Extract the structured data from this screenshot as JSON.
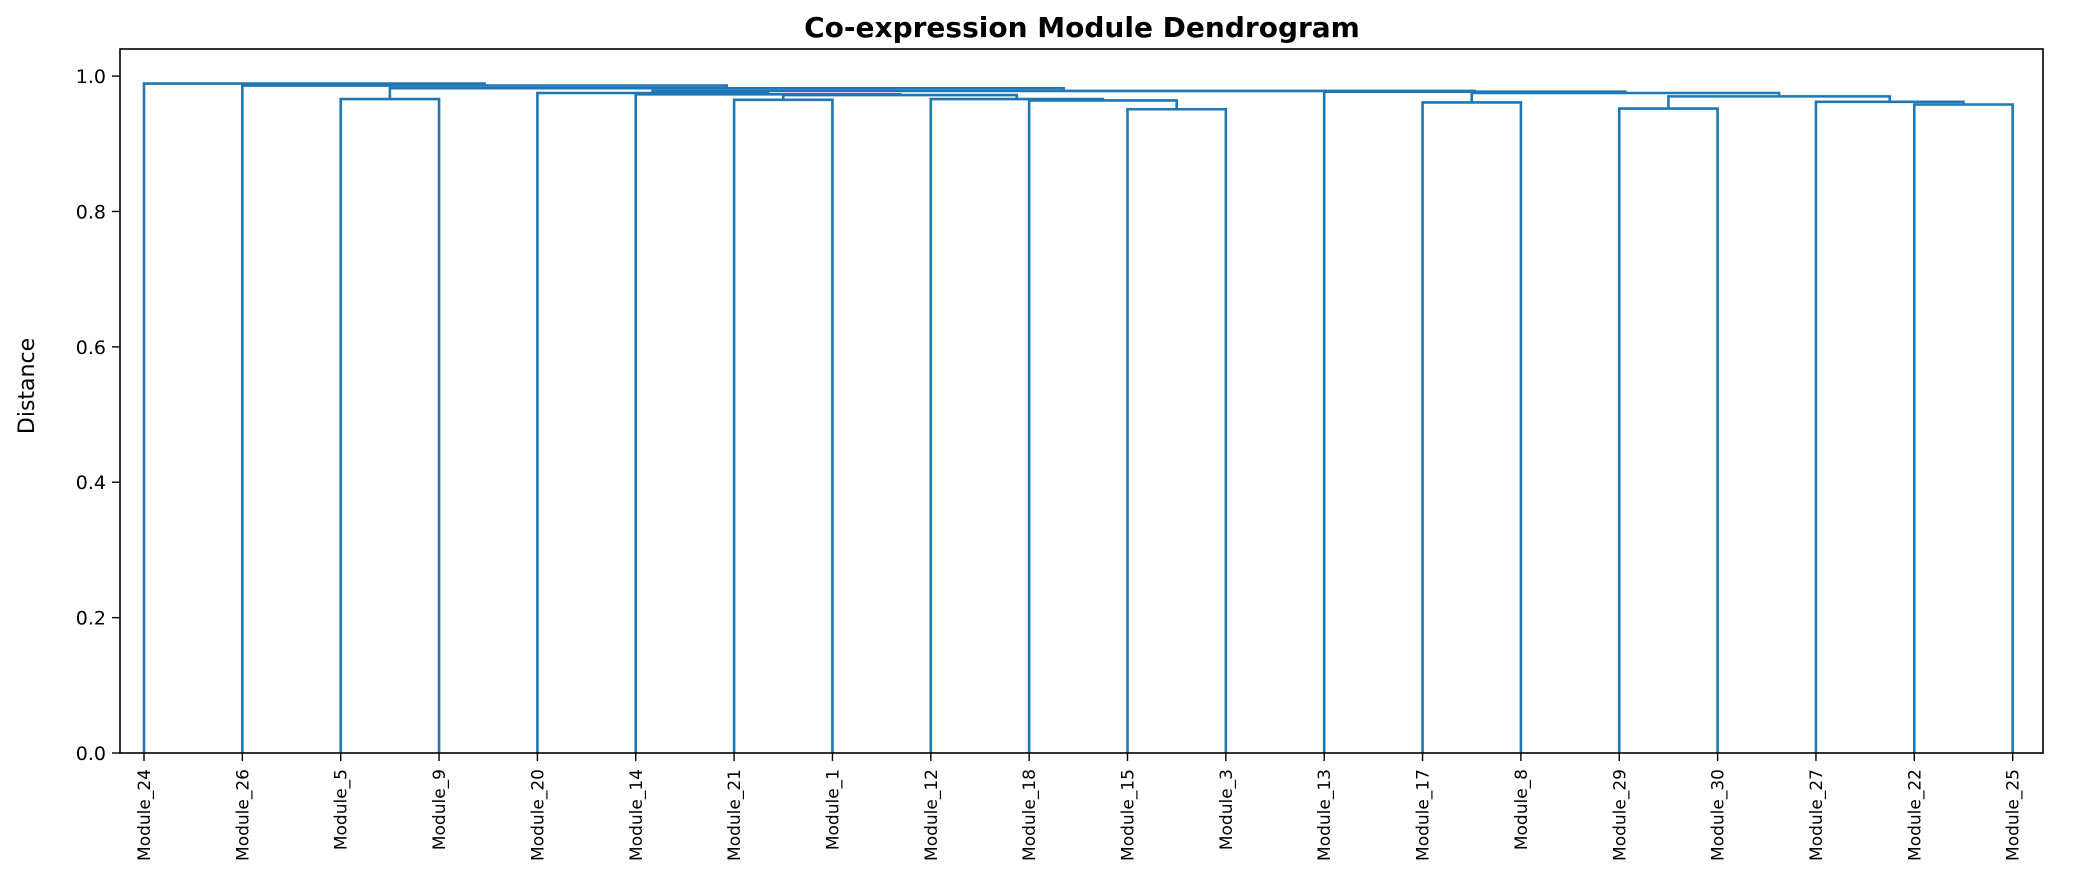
{
  "chart_data": {
    "type": "dendrogram",
    "title": "Co-expression Module Dendrogram",
    "xlabel": "",
    "ylabel": "Distance",
    "ylim": [
      0,
      1.04
    ],
    "yticks": [
      "0.0",
      "0.2",
      "0.4",
      "0.6",
      "0.8",
      "1.0"
    ],
    "grid": false,
    "link_color": "#1f77b4",
    "leaves": [
      "Module_24",
      "Module_26",
      "Module_5",
      "Module_9",
      "Module_20",
      "Module_14",
      "Module_21",
      "Module_1",
      "Module_12",
      "Module_18",
      "Module_15",
      "Module_3",
      "Module_13",
      "Module_17",
      "Module_8",
      "Module_29",
      "Module_30",
      "Module_27",
      "Module_22",
      "Module_25"
    ],
    "merges": [
      {
        "id": "m1",
        "left": "Module_15",
        "right": "Module_3",
        "height": 0.951
      },
      {
        "id": "m2",
        "left": "Module_29",
        "right": "Module_30",
        "height": 0.952
      },
      {
        "id": "m3",
        "left": "Module_22",
        "right": "Module_25",
        "height": 0.958
      },
      {
        "id": "m4",
        "left": "Module_17",
        "right": "Module_8",
        "height": 0.961
      },
      {
        "id": "m5",
        "left": "Module_27",
        "right": "m3",
        "height": 0.962
      },
      {
        "id": "m6",
        "left": "Module_18",
        "right": "m1",
        "height": 0.964
      },
      {
        "id": "m7",
        "left": "Module_21",
        "right": "Module_1",
        "height": 0.965
      },
      {
        "id": "m8",
        "left": "Module_5",
        "right": "Module_9",
        "height": 0.966
      },
      {
        "id": "m9",
        "left": "Module_12",
        "right": "m6",
        "height": 0.966
      },
      {
        "id": "m10",
        "left": "m2",
        "right": "m5",
        "height": 0.97
      },
      {
        "id": "m11",
        "left": "m7",
        "right": "m9",
        "height": 0.972
      },
      {
        "id": "m12",
        "left": "Module_14",
        "right": "m11",
        "height": 0.973
      },
      {
        "id": "m13",
        "left": "Module_20",
        "right": "m12",
        "height": 0.975
      },
      {
        "id": "m14",
        "left": "m4",
        "right": "m10",
        "height": 0.975
      },
      {
        "id": "m15",
        "left": "Module_13",
        "right": "m14",
        "height": 0.977
      },
      {
        "id": "m16",
        "left": "m13",
        "right": "m15",
        "height": 0.978
      },
      {
        "id": "m17",
        "left": "m8",
        "right": "m16",
        "height": 0.982
      },
      {
        "id": "m18",
        "left": "Module_26",
        "right": "m17",
        "height": 0.986
      },
      {
        "id": "m19",
        "left": "Module_24",
        "right": "m18",
        "height": 0.989
      }
    ]
  }
}
